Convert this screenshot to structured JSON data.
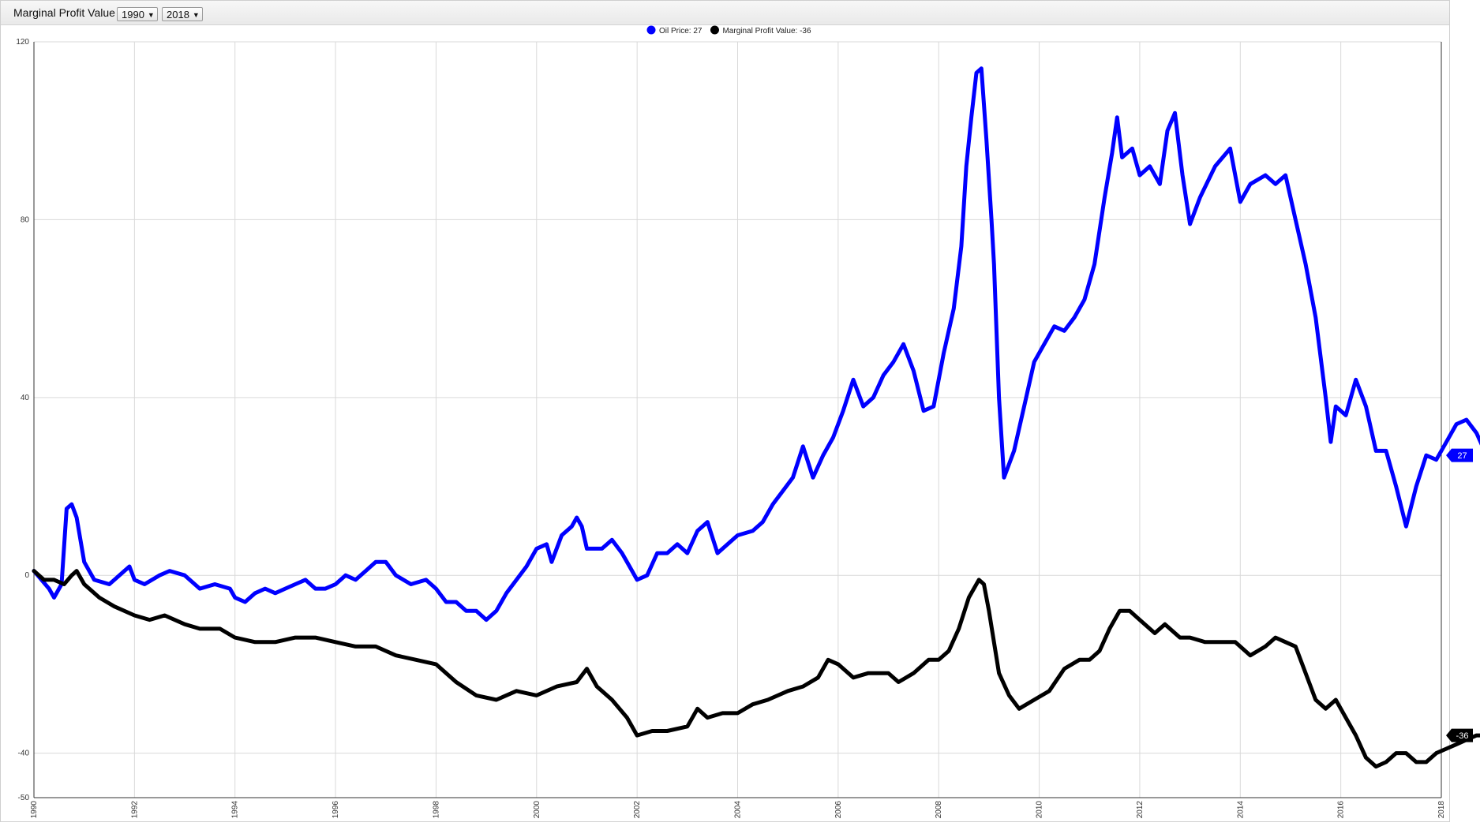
{
  "header": {
    "title": "Marginal Profit Value",
    "from_year": "1990",
    "to_year": "2018"
  },
  "legend": [
    {
      "label": "Oil Price: 27",
      "color": "#0000ff"
    },
    {
      "label": "Marginal Profit Value: -36",
      "color": "#000000"
    }
  ],
  "end_tags": [
    {
      "text": "27",
      "color": "#0000ff"
    },
    {
      "text": "-36",
      "color": "#000000"
    }
  ],
  "chart_data": {
    "type": "line",
    "xlim": [
      1990,
      2018
    ],
    "ylim": [
      -50,
      120
    ],
    "yticks": [
      120,
      80,
      40,
      0,
      -40,
      -50
    ],
    "xticks": [
      "1990",
      "1992",
      "1994",
      "1996",
      "1998",
      "2000",
      "2002",
      "2004",
      "2006",
      "2008",
      "2010",
      "2012",
      "2014",
      "2016",
      "2018"
    ],
    "grid": true,
    "legend_position": "top-center",
    "series": [
      {
        "name": "Oil Price",
        "color": "#0000ff",
        "points": [
          [
            1990.0,
            1
          ],
          [
            1990.3,
            -3
          ],
          [
            1990.4,
            -5
          ],
          [
            1990.55,
            -2
          ],
          [
            1990.65,
            15
          ],
          [
            1990.75,
            16
          ],
          [
            1990.85,
            13
          ],
          [
            1991.0,
            3
          ],
          [
            1991.2,
            -1
          ],
          [
            1991.5,
            -2
          ],
          [
            1991.6,
            -1
          ],
          [
            1991.8,
            1
          ],
          [
            1991.9,
            2
          ],
          [
            1992.0,
            -1
          ],
          [
            1992.2,
            -2
          ],
          [
            1992.5,
            0
          ],
          [
            1992.7,
            1
          ],
          [
            1993.0,
            0
          ],
          [
            1993.3,
            -3
          ],
          [
            1993.6,
            -2
          ],
          [
            1993.9,
            -3
          ],
          [
            1994.0,
            -5
          ],
          [
            1994.2,
            -6
          ],
          [
            1994.4,
            -4
          ],
          [
            1994.6,
            -3
          ],
          [
            1994.8,
            -4
          ],
          [
            1995.0,
            -3
          ],
          [
            1995.2,
            -2
          ],
          [
            1995.4,
            -1
          ],
          [
            1995.6,
            -3
          ],
          [
            1995.8,
            -3
          ],
          [
            1996.0,
            -2
          ],
          [
            1996.2,
            0
          ],
          [
            1996.4,
            -1
          ],
          [
            1996.6,
            1
          ],
          [
            1996.8,
            3
          ],
          [
            1997.0,
            3
          ],
          [
            1997.2,
            0
          ],
          [
            1997.5,
            -2
          ],
          [
            1997.8,
            -1
          ],
          [
            1998.0,
            -3
          ],
          [
            1998.2,
            -6
          ],
          [
            1998.4,
            -6
          ],
          [
            1998.6,
            -8
          ],
          [
            1998.8,
            -8
          ],
          [
            1999.0,
            -10
          ],
          [
            1999.2,
            -8
          ],
          [
            1999.4,
            -4
          ],
          [
            1999.6,
            -1
          ],
          [
            1999.8,
            2
          ],
          [
            2000.0,
            6
          ],
          [
            2000.2,
            7
          ],
          [
            2000.3,
            3
          ],
          [
            2000.5,
            9
          ],
          [
            2000.7,
            11
          ],
          [
            2000.8,
            13
          ],
          [
            2000.9,
            11
          ],
          [
            2001.0,
            6
          ],
          [
            2001.3,
            6
          ],
          [
            2001.5,
            8
          ],
          [
            2001.7,
            5
          ],
          [
            2001.85,
            2
          ],
          [
            2002.0,
            -1
          ],
          [
            2002.2,
            0
          ],
          [
            2002.4,
            5
          ],
          [
            2002.6,
            5
          ],
          [
            2002.8,
            7
          ],
          [
            2003.0,
            5
          ],
          [
            2003.2,
            10
          ],
          [
            2003.4,
            12
          ],
          [
            2003.6,
            5
          ],
          [
            2003.8,
            7
          ],
          [
            2004.0,
            9
          ],
          [
            2004.3,
            10
          ],
          [
            2004.5,
            12
          ],
          [
            2004.7,
            16
          ],
          [
            2004.9,
            19
          ],
          [
            2005.1,
            22
          ],
          [
            2005.3,
            29
          ],
          [
            2005.5,
            22
          ],
          [
            2005.7,
            27
          ],
          [
            2005.9,
            31
          ],
          [
            2006.1,
            37
          ],
          [
            2006.3,
            44
          ],
          [
            2006.5,
            38
          ],
          [
            2006.7,
            40
          ],
          [
            2006.9,
            45
          ],
          [
            2007.1,
            48
          ],
          [
            2007.3,
            52
          ],
          [
            2007.5,
            46
          ],
          [
            2007.7,
            37
          ],
          [
            2007.9,
            38
          ],
          [
            2008.1,
            50
          ],
          [
            2008.3,
            60
          ],
          [
            2008.45,
            74
          ],
          [
            2008.55,
            92
          ],
          [
            2008.65,
            103
          ],
          [
            2008.75,
            113
          ],
          [
            2008.85,
            114
          ],
          [
            2008.95,
            98
          ],
          [
            2009.05,
            80
          ],
          [
            2009.1,
            70
          ],
          [
            2009.2,
            40
          ],
          [
            2009.3,
            22
          ],
          [
            2009.5,
            28
          ],
          [
            2009.7,
            38
          ],
          [
            2009.9,
            48
          ],
          [
            2010.1,
            52
          ],
          [
            2010.3,
            56
          ],
          [
            2010.5,
            55
          ],
          [
            2010.7,
            58
          ],
          [
            2010.9,
            62
          ],
          [
            2011.1,
            70
          ],
          [
            2011.3,
            85
          ],
          [
            2011.45,
            95
          ],
          [
            2011.55,
            103
          ],
          [
            2011.65,
            94
          ],
          [
            2011.85,
            96
          ],
          [
            2012.0,
            90
          ],
          [
            2012.2,
            92
          ],
          [
            2012.4,
            88
          ],
          [
            2012.55,
            100
          ],
          [
            2012.7,
            104
          ],
          [
            2012.85,
            90
          ],
          [
            2013.0,
            79
          ],
          [
            2013.2,
            85
          ],
          [
            2013.5,
            92
          ],
          [
            2013.8,
            96
          ],
          [
            2014.0,
            84
          ],
          [
            2014.2,
            88
          ],
          [
            2014.5,
            90
          ],
          [
            2014.7,
            88
          ],
          [
            2014.9,
            90
          ],
          [
            2015.1,
            80
          ],
          [
            2015.3,
            70
          ],
          [
            2015.5,
            58
          ],
          [
            2015.7,
            40
          ],
          [
            2015.8,
            30
          ],
          [
            2015.9,
            38
          ],
          [
            2016.1,
            36
          ],
          [
            2016.3,
            44
          ],
          [
            2016.5,
            38
          ],
          [
            2016.7,
            28
          ],
          [
            2016.9,
            28
          ],
          [
            2017.1,
            20
          ],
          [
            2017.3,
            11
          ],
          [
            2017.5,
            20
          ],
          [
            2017.7,
            27
          ],
          [
            2017.9,
            26
          ],
          [
            2018.1,
            30
          ],
          [
            2018.3,
            34
          ],
          [
            2018.5,
            35
          ],
          [
            2018.7,
            32
          ],
          [
            2018.9,
            27
          ]
        ]
      },
      {
        "name": "Marginal Profit Value",
        "color": "#000000",
        "points": [
          [
            1990.0,
            1
          ],
          [
            1990.2,
            -1
          ],
          [
            1990.4,
            -1
          ],
          [
            1990.6,
            -2
          ],
          [
            1990.75,
            0
          ],
          [
            1990.85,
            1
          ],
          [
            1991.0,
            -2
          ],
          [
            1991.3,
            -5
          ],
          [
            1991.6,
            -7
          ],
          [
            1992.0,
            -9
          ],
          [
            1992.3,
            -10
          ],
          [
            1992.6,
            -9
          ],
          [
            1993.0,
            -11
          ],
          [
            1993.3,
            -12
          ],
          [
            1993.7,
            -12
          ],
          [
            1994.0,
            -14
          ],
          [
            1994.4,
            -15
          ],
          [
            1994.8,
            -15
          ],
          [
            1995.2,
            -14
          ],
          [
            1995.6,
            -14
          ],
          [
            1996.0,
            -15
          ],
          [
            1996.4,
            -16
          ],
          [
            1996.8,
            -16
          ],
          [
            1997.2,
            -18
          ],
          [
            1997.6,
            -19
          ],
          [
            1998.0,
            -20
          ],
          [
            1998.4,
            -24
          ],
          [
            1998.8,
            -27
          ],
          [
            1999.2,
            -28
          ],
          [
            1999.6,
            -26
          ],
          [
            2000.0,
            -27
          ],
          [
            2000.4,
            -25
          ],
          [
            2000.8,
            -24
          ],
          [
            2001.0,
            -21
          ],
          [
            2001.2,
            -25
          ],
          [
            2001.5,
            -28
          ],
          [
            2001.8,
            -32
          ],
          [
            2002.0,
            -36
          ],
          [
            2002.3,
            -35
          ],
          [
            2002.6,
            -35
          ],
          [
            2003.0,
            -34
          ],
          [
            2003.2,
            -30
          ],
          [
            2003.4,
            -32
          ],
          [
            2003.7,
            -31
          ],
          [
            2004.0,
            -31
          ],
          [
            2004.3,
            -29
          ],
          [
            2004.6,
            -28
          ],
          [
            2005.0,
            -26
          ],
          [
            2005.3,
            -25
          ],
          [
            2005.6,
            -23
          ],
          [
            2005.8,
            -19
          ],
          [
            2006.0,
            -20
          ],
          [
            2006.3,
            -23
          ],
          [
            2006.6,
            -22
          ],
          [
            2007.0,
            -22
          ],
          [
            2007.2,
            -24
          ],
          [
            2007.5,
            -22
          ],
          [
            2007.8,
            -19
          ],
          [
            2008.0,
            -19
          ],
          [
            2008.2,
            -17
          ],
          [
            2008.4,
            -12
          ],
          [
            2008.6,
            -5
          ],
          [
            2008.8,
            -1
          ],
          [
            2008.9,
            -2
          ],
          [
            2009.0,
            -8
          ],
          [
            2009.2,
            -22
          ],
          [
            2009.4,
            -27
          ],
          [
            2009.6,
            -30
          ],
          [
            2009.9,
            -28
          ],
          [
            2010.2,
            -26
          ],
          [
            2010.5,
            -21
          ],
          [
            2010.8,
            -19
          ],
          [
            2011.0,
            -19
          ],
          [
            2011.2,
            -17
          ],
          [
            2011.4,
            -12
          ],
          [
            2011.6,
            -8
          ],
          [
            2011.8,
            -8
          ],
          [
            2012.0,
            -10
          ],
          [
            2012.3,
            -13
          ],
          [
            2012.5,
            -11
          ],
          [
            2012.8,
            -14
          ],
          [
            2013.0,
            -14
          ],
          [
            2013.3,
            -15
          ],
          [
            2013.6,
            -15
          ],
          [
            2013.9,
            -15
          ],
          [
            2014.2,
            -18
          ],
          [
            2014.5,
            -16
          ],
          [
            2014.7,
            -14
          ],
          [
            2014.9,
            -15
          ],
          [
            2015.1,
            -16
          ],
          [
            2015.3,
            -22
          ],
          [
            2015.5,
            -28
          ],
          [
            2015.7,
            -30
          ],
          [
            2015.9,
            -28
          ],
          [
            2016.1,
            -32
          ],
          [
            2016.3,
            -36
          ],
          [
            2016.5,
            -41
          ],
          [
            2016.7,
            -43
          ],
          [
            2016.9,
            -42
          ],
          [
            2017.1,
            -40
          ],
          [
            2017.3,
            -40
          ],
          [
            2017.5,
            -42
          ],
          [
            2017.7,
            -42
          ],
          [
            2017.9,
            -40
          ],
          [
            2018.1,
            -39
          ],
          [
            2018.3,
            -38
          ],
          [
            2018.5,
            -37
          ],
          [
            2018.7,
            -36
          ],
          [
            2018.9,
            -36
          ]
        ]
      }
    ]
  }
}
